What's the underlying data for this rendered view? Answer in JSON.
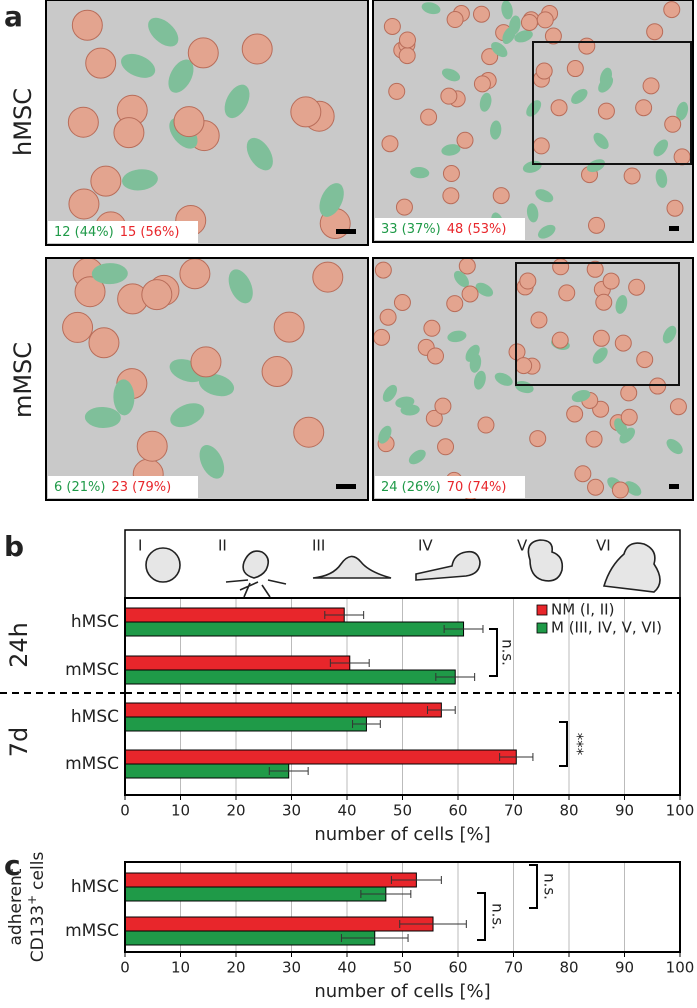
{
  "panel_a": {
    "label": "a",
    "rows": [
      "hMSC",
      "mMSC"
    ],
    "images": [
      {
        "green": "12 (44%)",
        "red": "15 (56%)"
      },
      {
        "green": "33 (37%)",
        "red": "48 (53%)"
      },
      {
        "green": "6 (21%)",
        "red": "23 (79%)"
      },
      {
        "green": "24 (26%)",
        "red": "70 (74%)"
      }
    ]
  },
  "chart_data": [
    {
      "type": "hbar",
      "panel": "b",
      "shape_labels": [
        "I",
        "II",
        "III",
        "IV",
        "V",
        "VI"
      ],
      "groups": [
        "24h",
        "7d"
      ],
      "categories": [
        "hMSC",
        "mMSC",
        "hMSC",
        "mMSC"
      ],
      "series": [
        {
          "name": "NM (I, II)",
          "color": "#e8262b",
          "values": [
            39.5,
            40.5,
            57,
            70.5
          ],
          "errors": [
            3.5,
            3.5,
            2.5,
            3
          ]
        },
        {
          "name": "M (III, IV, V, VI)",
          "color": "#1f9a48",
          "values": [
            61,
            59.5,
            43.5,
            29.5
          ],
          "errors": [
            3.5,
            3.5,
            2.5,
            3.5
          ]
        }
      ],
      "annotations": [
        "n.s.",
        "***"
      ],
      "xlabel": "number of cells [%]",
      "xlim": [
        0,
        100
      ],
      "xticks": [
        0,
        10,
        20,
        30,
        40,
        50,
        60,
        70,
        80,
        90,
        100
      ],
      "grid": true
    },
    {
      "type": "hbar",
      "panel": "c",
      "ylabel": {
        "line1": "adherent",
        "line2": "CD133",
        "sup": "+",
        "line2_end": "cells"
      },
      "categories": [
        "hMSC",
        "mMSC"
      ],
      "series": [
        {
          "name": "NM (I, II)",
          "color": "#e8262b",
          "values": [
            52.5,
            55.5
          ],
          "errors": [
            4.5,
            6
          ]
        },
        {
          "name": "M (III, IV, V, VI)",
          "color": "#1f9a48",
          "values": [
            47,
            45
          ],
          "errors": [
            4.5,
            6
          ]
        }
      ],
      "annotations": [
        "n.s.",
        "n.s."
      ],
      "xlabel": "number of cells [%]",
      "xlim": [
        0,
        100
      ],
      "xticks": [
        0,
        10,
        20,
        30,
        40,
        50,
        60,
        70,
        80,
        90,
        100
      ],
      "grid": true
    }
  ]
}
